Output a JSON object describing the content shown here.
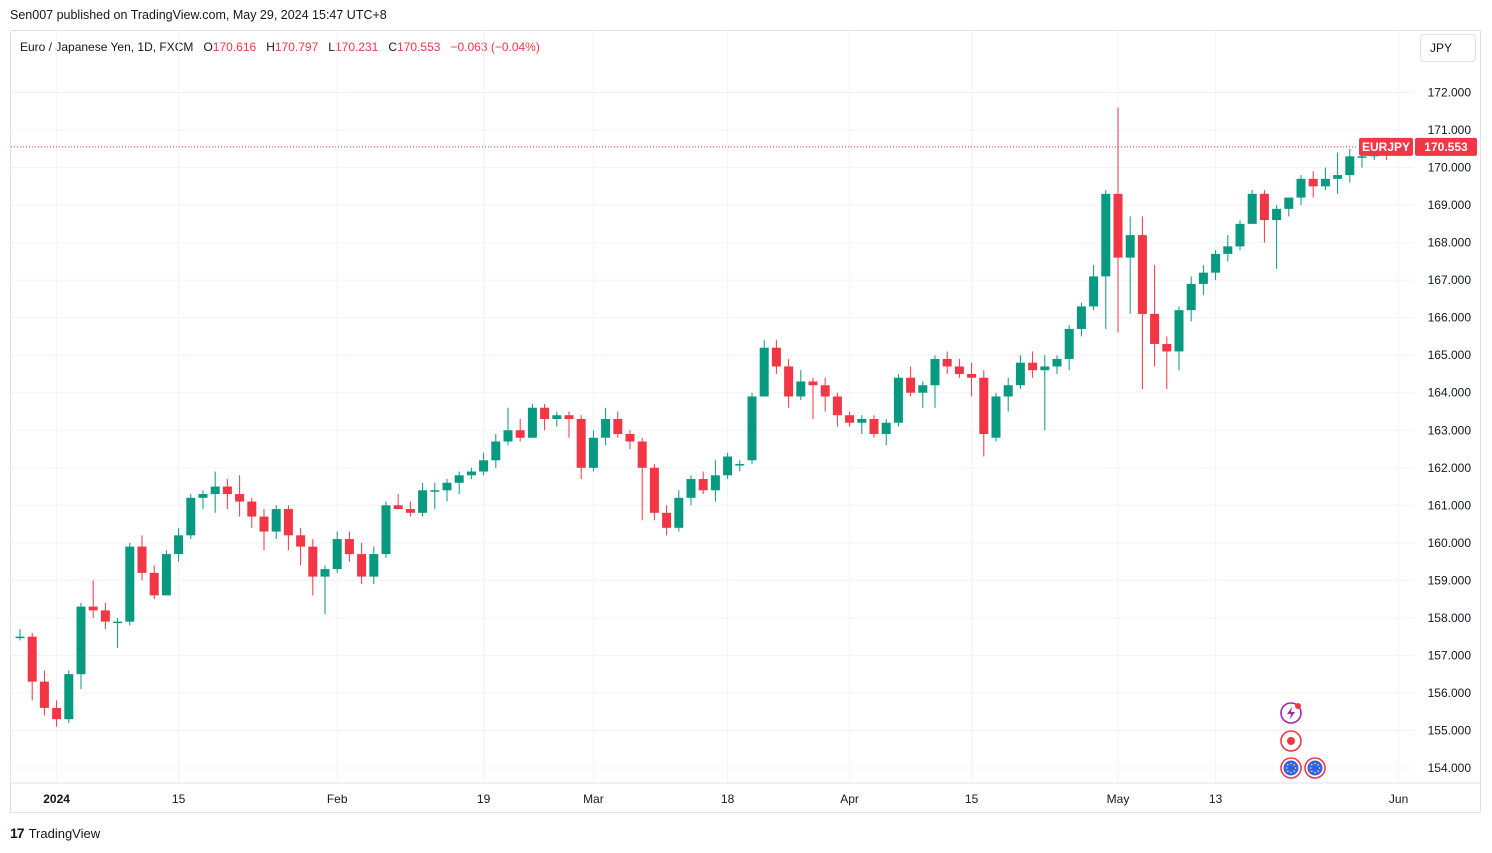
{
  "header": {
    "published": "Sen007 published on TradingView.com, May 29, 2024 15:47 UTC+8"
  },
  "legend": {
    "symbol": "Euro / Japanese Yen, 1D, FXCM",
    "o_label": "O",
    "o_val": "170.616",
    "h_label": "H",
    "h_val": "170.797",
    "l_label": "L",
    "l_val": "170.231",
    "c_label": "C",
    "c_val": "170.553",
    "change": "−0.063 (−0.04%)"
  },
  "currency_button": "JPY",
  "price_tag": {
    "symbol": "EURJPY",
    "value": "170.553"
  },
  "footer": {
    "brand": "TradingView",
    "logo_mark": "17"
  },
  "colors": {
    "up": "#089981",
    "down": "#f23645",
    "grid": "#f0f3fa",
    "text": "#131722"
  },
  "chart_data": {
    "type": "candlestick",
    "ylim": [
      153.6,
      172.6
    ],
    "y_ticks": [
      "154.000",
      "155.000",
      "156.000",
      "157.000",
      "158.000",
      "159.000",
      "160.000",
      "161.000",
      "162.000",
      "163.000",
      "164.000",
      "165.000",
      "166.000",
      "167.000",
      "168.000",
      "169.000",
      "170.000",
      "171.000",
      "172.000"
    ],
    "x_ticks": [
      {
        "i": 3,
        "label": "2024"
      },
      {
        "i": 13,
        "label": "15"
      },
      {
        "i": 26,
        "label": "Feb"
      },
      {
        "i": 38,
        "label": "19"
      },
      {
        "i": 47,
        "label": "Mar"
      },
      {
        "i": 58,
        "label": "18"
      },
      {
        "i": 68,
        "label": "Apr"
      },
      {
        "i": 78,
        "label": "15"
      },
      {
        "i": 90,
        "label": "May"
      },
      {
        "i": 98,
        "label": "13"
      },
      {
        "i": 113,
        "label": "Jun"
      }
    ],
    "last_price": 170.553,
    "candles": [
      [
        157.5,
        157.7,
        157.4,
        157.5
      ],
      [
        157.5,
        157.6,
        155.8,
        156.3
      ],
      [
        156.3,
        156.6,
        155.4,
        155.6
      ],
      [
        155.6,
        155.8,
        155.1,
        155.3
      ],
      [
        155.3,
        156.6,
        155.2,
        156.5
      ],
      [
        156.5,
        158.4,
        156.1,
        158.3
      ],
      [
        158.3,
        159.0,
        158.0,
        158.2
      ],
      [
        158.2,
        158.4,
        157.7,
        157.9
      ],
      [
        157.9,
        158.0,
        157.2,
        157.9
      ],
      [
        157.9,
        160.0,
        157.8,
        159.9
      ],
      [
        159.9,
        160.2,
        159.0,
        159.2
      ],
      [
        159.2,
        159.4,
        158.5,
        158.6
      ],
      [
        158.6,
        159.8,
        158.6,
        159.7
      ],
      [
        159.7,
        160.4,
        159.5,
        160.2
      ],
      [
        160.2,
        161.3,
        160.1,
        161.2
      ],
      [
        161.2,
        161.4,
        160.9,
        161.3
      ],
      [
        161.3,
        161.9,
        160.8,
        161.5
      ],
      [
        161.5,
        161.7,
        160.9,
        161.3
      ],
      [
        161.3,
        161.8,
        160.7,
        161.1
      ],
      [
        161.1,
        161.2,
        160.4,
        160.7
      ],
      [
        160.7,
        160.9,
        159.8,
        160.3
      ],
      [
        160.3,
        161.0,
        160.1,
        160.9
      ],
      [
        160.9,
        161.0,
        159.8,
        160.2
      ],
      [
        160.2,
        160.4,
        159.4,
        159.9
      ],
      [
        159.9,
        160.1,
        158.6,
        159.1
      ],
      [
        159.1,
        159.4,
        158.1,
        159.3
      ],
      [
        159.3,
        160.3,
        159.2,
        160.1
      ],
      [
        160.1,
        160.3,
        159.5,
        159.7
      ],
      [
        159.7,
        160.0,
        158.9,
        159.1
      ],
      [
        159.1,
        159.9,
        158.9,
        159.7
      ],
      [
        159.7,
        161.1,
        159.6,
        161.0
      ],
      [
        161.0,
        161.3,
        160.9,
        160.9
      ],
      [
        160.9,
        161.1,
        160.7,
        160.8
      ],
      [
        160.8,
        161.6,
        160.7,
        161.4
      ],
      [
        161.4,
        161.6,
        160.9,
        161.4
      ],
      [
        161.4,
        161.7,
        161.1,
        161.6
      ],
      [
        161.6,
        161.9,
        161.3,
        161.8
      ],
      [
        161.8,
        162.0,
        161.7,
        161.9
      ],
      [
        161.9,
        162.4,
        161.8,
        162.2
      ],
      [
        162.2,
        162.9,
        162.0,
        162.7
      ],
      [
        162.7,
        163.6,
        162.6,
        163.0
      ],
      [
        163.0,
        163.3,
        162.7,
        162.8
      ],
      [
        162.8,
        163.7,
        162.8,
        163.6
      ],
      [
        163.6,
        163.7,
        163.0,
        163.3
      ],
      [
        163.3,
        163.5,
        163.1,
        163.4
      ],
      [
        163.4,
        163.5,
        162.8,
        163.3
      ],
      [
        163.3,
        163.4,
        161.7,
        162.0
      ],
      [
        162.0,
        163.0,
        161.9,
        162.8
      ],
      [
        162.8,
        163.6,
        162.6,
        163.3
      ],
      [
        163.3,
        163.5,
        162.8,
        162.9
      ],
      [
        162.9,
        163.0,
        162.5,
        162.7
      ],
      [
        162.7,
        162.8,
        160.6,
        162.0
      ],
      [
        162.0,
        162.1,
        160.6,
        160.8
      ],
      [
        160.8,
        161.0,
        160.2,
        160.4
      ],
      [
        160.4,
        161.4,
        160.3,
        161.2
      ],
      [
        161.2,
        161.8,
        161.0,
        161.7
      ],
      [
        161.7,
        161.9,
        161.3,
        161.4
      ],
      [
        161.4,
        162.2,
        161.1,
        161.8
      ],
      [
        161.8,
        162.4,
        161.7,
        162.3
      ],
      [
        162.1,
        162.2,
        161.9,
        162.1
      ],
      [
        162.2,
        164.0,
        162.1,
        163.9
      ],
      [
        163.9,
        165.4,
        163.9,
        165.2
      ],
      [
        165.2,
        165.4,
        164.5,
        164.7
      ],
      [
        164.7,
        164.9,
        163.6,
        163.9
      ],
      [
        163.9,
        164.6,
        163.8,
        164.3
      ],
      [
        164.3,
        164.4,
        163.3,
        164.2
      ],
      [
        164.2,
        164.4,
        163.5,
        163.9
      ],
      [
        163.9,
        164.0,
        163.1,
        163.4
      ],
      [
        163.4,
        163.5,
        163.1,
        163.2
      ],
      [
        163.2,
        163.4,
        162.9,
        163.3
      ],
      [
        163.3,
        163.4,
        162.8,
        162.9
      ],
      [
        162.9,
        163.3,
        162.6,
        163.2
      ],
      [
        163.2,
        164.5,
        163.1,
        164.4
      ],
      [
        164.4,
        164.7,
        163.9,
        164.0
      ],
      [
        164.0,
        164.3,
        163.6,
        164.2
      ],
      [
        164.2,
        165.0,
        163.6,
        164.9
      ],
      [
        164.9,
        165.1,
        164.5,
        164.7
      ],
      [
        164.7,
        164.9,
        164.4,
        164.5
      ],
      [
        164.5,
        164.8,
        163.9,
        164.4
      ],
      [
        164.4,
        164.6,
        162.3,
        162.9
      ],
      [
        162.8,
        164.0,
        162.7,
        163.9
      ],
      [
        163.9,
        164.4,
        163.5,
        164.2
      ],
      [
        164.2,
        165.0,
        164.1,
        164.8
      ],
      [
        164.8,
        165.1,
        164.4,
        164.6
      ],
      [
        164.6,
        165.0,
        163.0,
        164.7
      ],
      [
        164.7,
        165.0,
        164.5,
        164.9
      ],
      [
        164.9,
        165.8,
        164.6,
        165.7
      ],
      [
        165.7,
        166.4,
        165.5,
        166.3
      ],
      [
        166.3,
        167.4,
        166.2,
        167.1
      ],
      [
        167.1,
        169.4,
        165.7,
        169.3
      ],
      [
        169.3,
        171.6,
        165.6,
        167.6
      ],
      [
        167.6,
        168.7,
        166.1,
        168.2
      ],
      [
        168.2,
        168.7,
        164.1,
        166.1
      ],
      [
        166.1,
        167.4,
        164.7,
        165.3
      ],
      [
        165.3,
        165.5,
        164.1,
        165.1
      ],
      [
        165.1,
        166.3,
        164.6,
        166.2
      ],
      [
        166.2,
        167.1,
        165.9,
        166.9
      ],
      [
        166.9,
        167.4,
        166.6,
        167.2
      ],
      [
        167.2,
        167.8,
        167.0,
        167.7
      ],
      [
        167.7,
        168.2,
        167.5,
        167.9
      ],
      [
        167.9,
        168.6,
        167.8,
        168.5
      ],
      [
        168.5,
        169.4,
        168.5,
        169.3
      ],
      [
        169.3,
        169.4,
        168.0,
        168.6
      ],
      [
        168.6,
        169.0,
        167.3,
        168.9
      ],
      [
        168.9,
        169.2,
        168.7,
        169.2
      ],
      [
        169.2,
        169.8,
        169.0,
        169.7
      ],
      [
        169.7,
        169.9,
        169.2,
        169.5
      ],
      [
        169.5,
        170.0,
        169.4,
        169.7
      ],
      [
        169.7,
        170.4,
        169.3,
        169.8
      ],
      [
        169.8,
        170.5,
        169.6,
        170.3
      ],
      [
        170.3,
        170.5,
        170.0,
        170.3
      ],
      [
        170.3,
        170.8,
        170.2,
        170.6
      ],
      [
        170.6,
        170.8,
        170.2,
        170.55
      ]
    ]
  }
}
